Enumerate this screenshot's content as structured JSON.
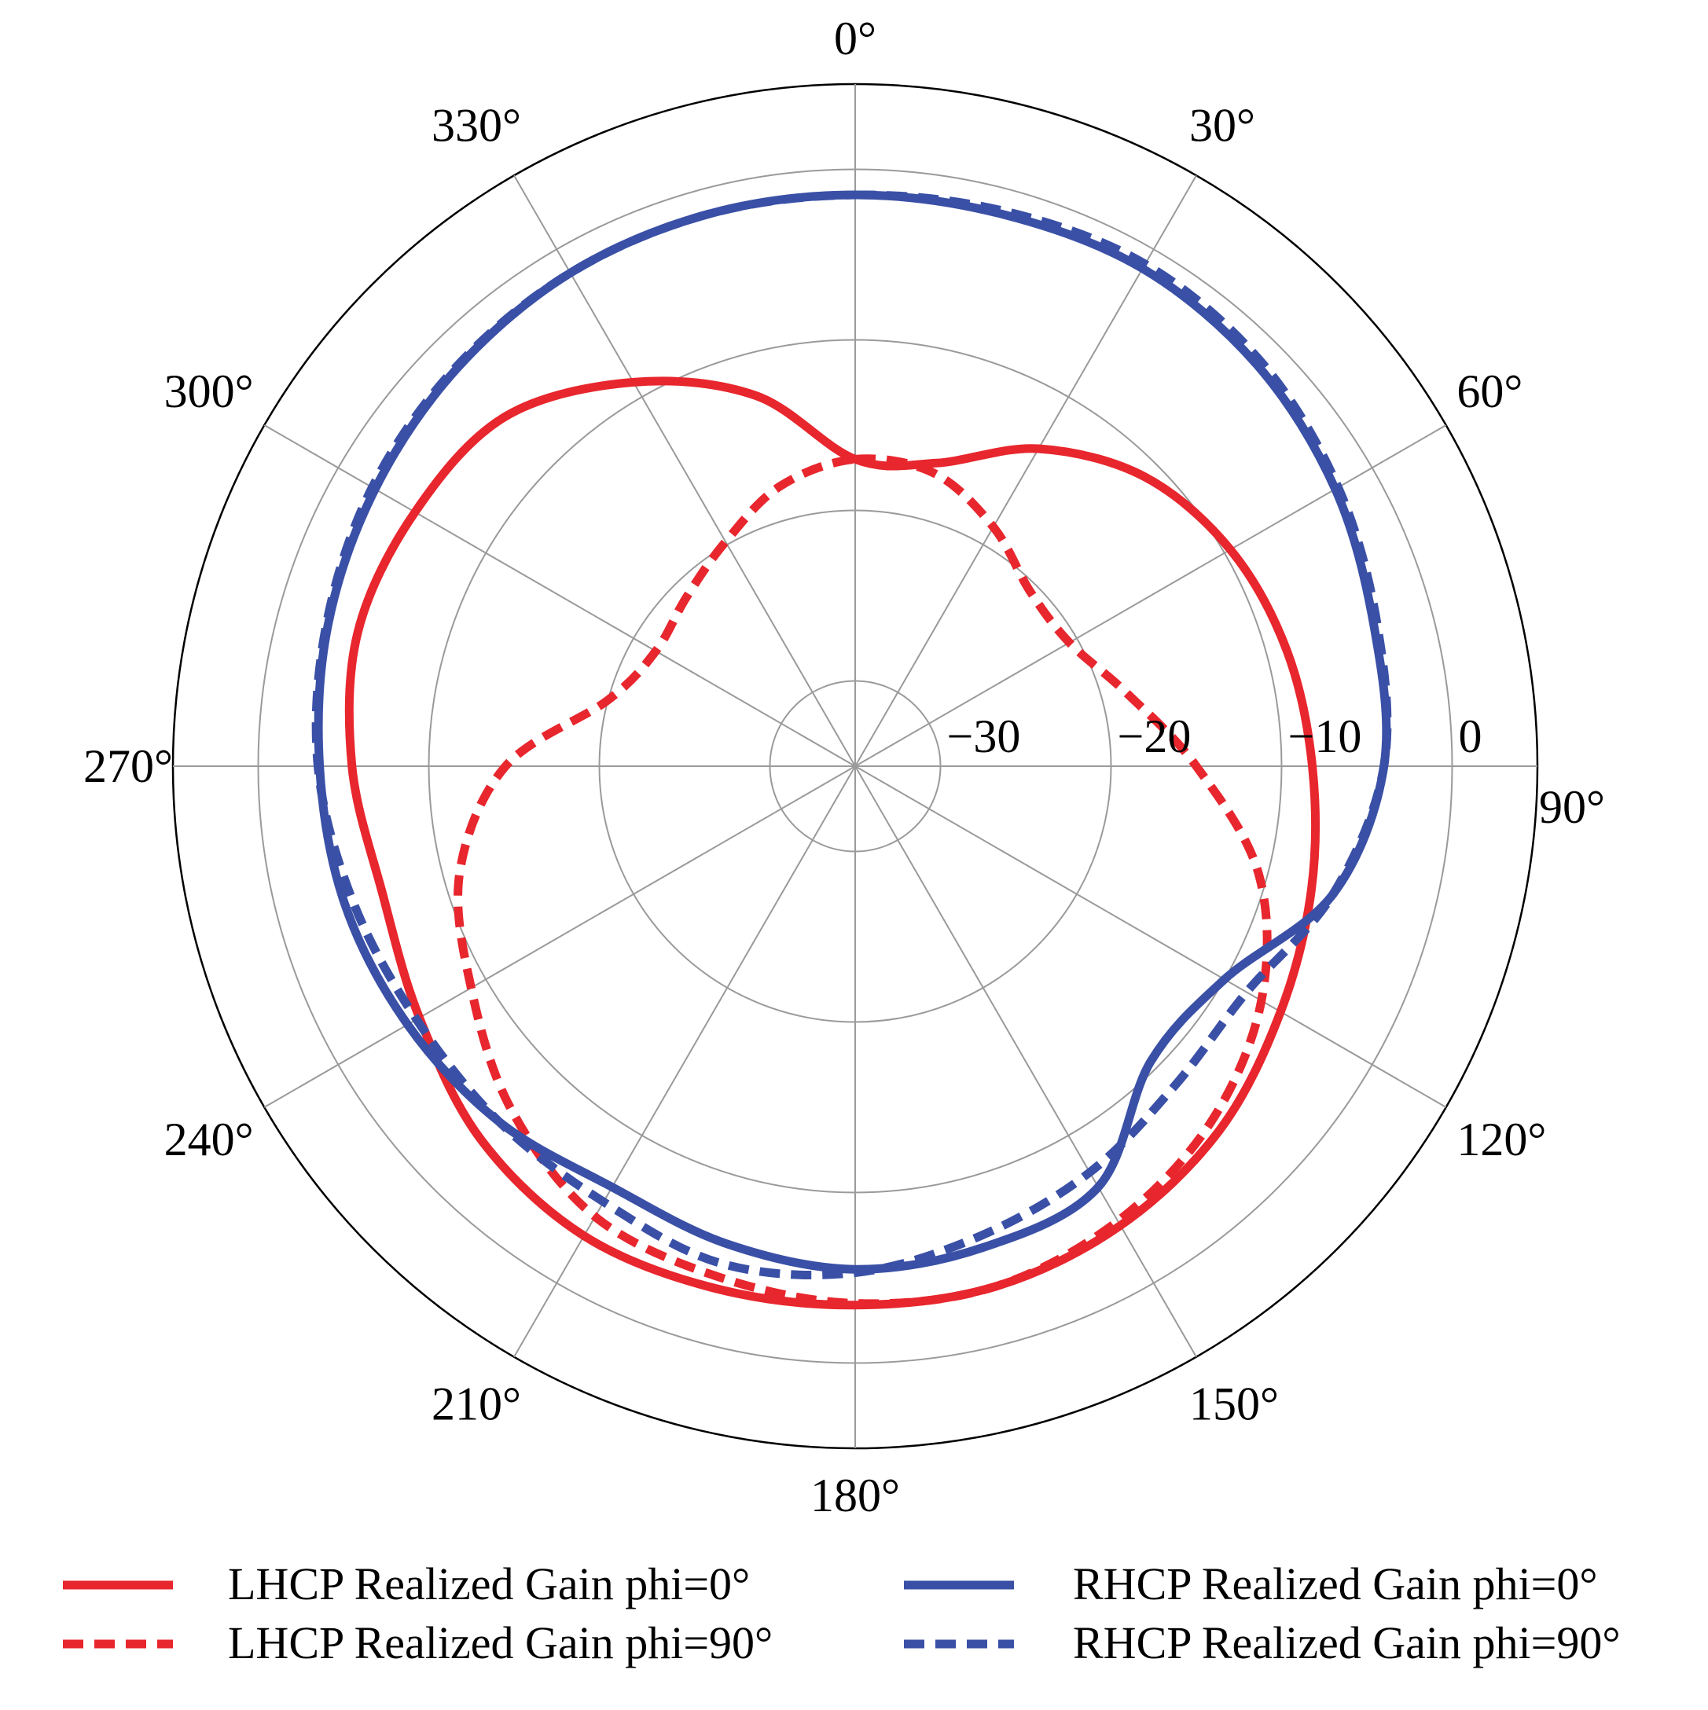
{
  "chart_data": {
    "type": "polar-line",
    "angle_zero": "top",
    "angle_direction": "clockwise",
    "angle_ticks": [
      "0°",
      "30°",
      "60°",
      "90°",
      "120°",
      "150°",
      "180°",
      "210°",
      "240°",
      "270°",
      "300°",
      "330°"
    ],
    "radial_ticks": [
      "−30",
      "−20",
      "−10",
      "0"
    ],
    "radial_tick_values": [
      -30,
      -20,
      -10,
      0
    ],
    "rlim": [
      -35,
      5
    ],
    "grid": true,
    "legend_position": "bottom",
    "series": [
      {
        "name": "LHCP Realized Gain phi=0°",
        "color": "#e8262d",
        "style": "solid",
        "points": [
          [
            0,
            -17.0
          ],
          [
            15,
            -16.6
          ],
          [
            30,
            -13.5
          ],
          [
            45,
            -11.0
          ],
          [
            60,
            -9.6
          ],
          [
            75,
            -8.8
          ],
          [
            90,
            -8.2
          ],
          [
            105,
            -7.3
          ],
          [
            120,
            -6.2
          ],
          [
            135,
            -4.8
          ],
          [
            150,
            -3.9
          ],
          [
            165,
            -3.4
          ],
          [
            180,
            -3.4
          ],
          [
            195,
            -3.3
          ],
          [
            210,
            -3.2
          ],
          [
            225,
            -4.0
          ],
          [
            240,
            -5.5
          ],
          [
            255,
            -6.3
          ],
          [
            270,
            -5.5
          ],
          [
            285,
            -4.8
          ],
          [
            300,
            -5.2
          ],
          [
            315,
            -6.0
          ],
          [
            330,
            -9.0
          ],
          [
            345,
            -12.5
          ],
          [
            360,
            -17.0
          ]
        ]
      },
      {
        "name": "LHCP Realized Gain phi=90°",
        "color": "#e8262d",
        "style": "dashed",
        "points": [
          [
            0,
            -17.0
          ],
          [
            15,
            -17.2
          ],
          [
            30,
            -18.8
          ],
          [
            45,
            -20.5
          ],
          [
            60,
            -20.5
          ],
          [
            75,
            -18.5
          ],
          [
            90,
            -15.0
          ],
          [
            105,
            -10.5
          ],
          [
            120,
            -7.5
          ],
          [
            135,
            -5.5
          ],
          [
            150,
            -4.2
          ],
          [
            165,
            -3.4
          ],
          [
            180,
            -3.5
          ],
          [
            195,
            -4.0
          ],
          [
            210,
            -4.5
          ],
          [
            225,
            -6.5
          ],
          [
            240,
            -9.0
          ],
          [
            255,
            -11.0
          ],
          [
            270,
            -14.5
          ],
          [
            285,
            -20.0
          ],
          [
            300,
            -21.5
          ],
          [
            315,
            -21.0
          ],
          [
            330,
            -19.8
          ],
          [
            345,
            -18.0
          ],
          [
            360,
            -17.0
          ]
        ]
      },
      {
        "name": "RHCP Realized Gain phi=0°",
        "color": "#3a50a6",
        "style": "solid",
        "points": [
          [
            0,
            -1.5
          ],
          [
            15,
            -1.5
          ],
          [
            30,
            -1.3
          ],
          [
            45,
            -1.7
          ],
          [
            60,
            -2.5
          ],
          [
            75,
            -3.5
          ],
          [
            90,
            -4.0
          ],
          [
            105,
            -6.0
          ],
          [
            120,
            -10.0
          ],
          [
            135,
            -10.5
          ],
          [
            150,
            -6.5
          ],
          [
            165,
            -5.8
          ],
          [
            180,
            -5.5
          ],
          [
            195,
            -6.0
          ],
          [
            210,
            -6.5
          ],
          [
            225,
            -5.5
          ],
          [
            240,
            -4.7
          ],
          [
            255,
            -4.0
          ],
          [
            270,
            -3.6
          ],
          [
            285,
            -3.0
          ],
          [
            300,
            -2.5
          ],
          [
            315,
            -2.0
          ],
          [
            330,
            -1.6
          ],
          [
            345,
            -1.5
          ],
          [
            360,
            -1.5
          ]
        ]
      },
      {
        "name": "RHCP Realized Gain phi=90°",
        "color": "#3a50a6",
        "style": "dashed",
        "points": [
          [
            0,
            -1.5
          ],
          [
            15,
            -1.3
          ],
          [
            30,
            -1.0
          ],
          [
            45,
            -1.4
          ],
          [
            60,
            -2.3
          ],
          [
            75,
            -3.3
          ],
          [
            90,
            -4.0
          ],
          [
            105,
            -6.0
          ],
          [
            120,
            -8.5
          ],
          [
            135,
            -8.5
          ],
          [
            150,
            -7.5
          ],
          [
            165,
            -6.5
          ],
          [
            180,
            -5.3
          ],
          [
            195,
            -4.8
          ],
          [
            210,
            -5.5
          ],
          [
            225,
            -5.5
          ],
          [
            240,
            -5.3
          ],
          [
            255,
            -4.5
          ],
          [
            270,
            -3.5
          ],
          [
            285,
            -2.9
          ],
          [
            300,
            -2.3
          ],
          [
            315,
            -1.9
          ],
          [
            330,
            -1.6
          ],
          [
            345,
            -1.5
          ],
          [
            360,
            -1.5
          ]
        ]
      }
    ]
  }
}
